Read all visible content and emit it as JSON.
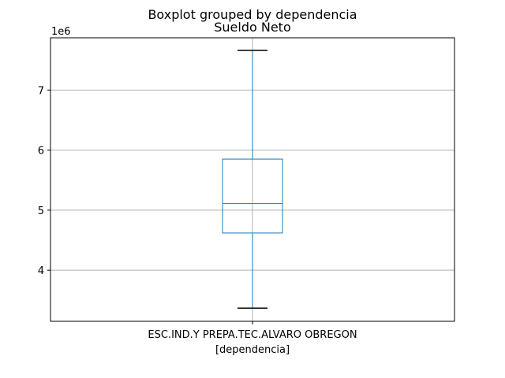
{
  "chart_data": {
    "type": "boxplot",
    "suptitle": "Boxplot grouped by dependencia",
    "title": "Sueldo Neto",
    "xlabel": "[dependencia]",
    "ylabel": "",
    "offset_label": "1e6",
    "categories": [
      "ESC.IND.Y PREPA.TEC.ALVARO OBREGON"
    ],
    "boxes": [
      {
        "category": "ESC.IND.Y PREPA.TEC.ALVARO OBREGON",
        "whisker_low": 3.37,
        "q1": 4.62,
        "median": 5.11,
        "q3": 5.85,
        "whisker_high": 7.66
      }
    ],
    "ylim": [
      3.15,
      7.87
    ],
    "yticks": [
      4,
      5,
      6,
      7
    ],
    "ytick_labels": [
      "4",
      "5",
      "6",
      "7"
    ],
    "grid": true,
    "colors": {
      "box": "#1f77b4",
      "median": "#2ca02c",
      "caps": "#000000",
      "grid": "#b0b0b0"
    }
  }
}
